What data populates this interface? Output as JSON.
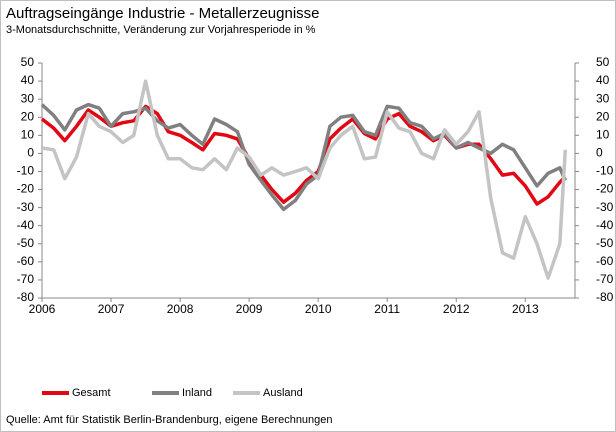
{
  "chart_data": {
    "type": "line",
    "title": "Auftragseingänge Industrie - Metallerzeugnisse",
    "subtitle": "3-Monatsdurchschnitte, Veränderung zur Vorjahresperiode in %",
    "source": "Quelle: Amt für Statistik Berlin-Brandenburg, eigene Berechnungen",
    "x": [
      2006.0,
      2006.17,
      2006.33,
      2006.5,
      2006.67,
      2006.83,
      2007.0,
      2007.17,
      2007.33,
      2007.5,
      2007.67,
      2007.83,
      2008.0,
      2008.17,
      2008.33,
      2008.5,
      2008.67,
      2008.83,
      2009.0,
      2009.17,
      2009.33,
      2009.5,
      2009.67,
      2009.83,
      2010.0,
      2010.17,
      2010.33,
      2010.5,
      2010.67,
      2010.83,
      2011.0,
      2011.17,
      2011.33,
      2011.5,
      2011.67,
      2011.83,
      2012.0,
      2012.17,
      2012.33,
      2012.5,
      2012.67,
      2012.83,
      2013.0,
      2013.17,
      2013.33,
      2013.5,
      2013.58
    ],
    "series": [
      {
        "name": "Gesamt",
        "color": "#e30613",
        "values": [
          19,
          14,
          7,
          15,
          24,
          20,
          15,
          17,
          18,
          26,
          22,
          12,
          10,
          6,
          2,
          11,
          10,
          8,
          -3,
          -12,
          -20,
          -27,
          -22,
          -15,
          -10,
          8,
          14,
          19,
          11,
          8,
          19,
          22,
          15,
          12,
          7,
          10,
          3,
          5,
          5,
          -3,
          -12,
          -11,
          -18,
          -28,
          -24,
          -16,
          -13
        ]
      },
      {
        "name": "Inland",
        "color": "#808080",
        "values": [
          27,
          21,
          13,
          24,
          27,
          25,
          15,
          22,
          23,
          25,
          18,
          14,
          16,
          10,
          5,
          19,
          16,
          12,
          -6,
          -15,
          -23,
          -31,
          -26,
          -17,
          -12,
          15,
          20,
          21,
          12,
          10,
          26,
          25,
          17,
          15,
          8,
          11,
          3,
          6,
          3,
          0,
          5,
          2,
          -8,
          -18,
          -11,
          -8,
          -15
        ]
      },
      {
        "name": "Ausland",
        "color": "#c4c4c4",
        "values": [
          3,
          2,
          -14,
          -2,
          22,
          15,
          12,
          6,
          10,
          40,
          10,
          -3,
          -3,
          -8,
          -9,
          -3,
          -9,
          3,
          -2,
          -12,
          -8,
          -12,
          -10,
          -8,
          -14,
          3,
          10,
          15,
          -3,
          -2,
          23,
          14,
          12,
          0,
          -3,
          13,
          5,
          12,
          23,
          -25,
          -55,
          -58,
          -35,
          -50,
          -69,
          -50,
          2
        ]
      }
    ],
    "xlim": [
      2006,
      2013.72
    ],
    "xticks": [
      2006,
      2007,
      2008,
      2009,
      2010,
      2011,
      2012,
      2013
    ],
    "ylim": [
      -80,
      50
    ],
    "yticks": [
      -80,
      -70,
      -60,
      -50,
      -40,
      -30,
      -20,
      -10,
      0,
      10,
      20,
      30,
      40,
      50
    ],
    "y2lim": [
      -80,
      50
    ],
    "y2ticks": [
      -80,
      -70,
      -60,
      -50,
      -40,
      -30,
      -20,
      -10,
      0,
      10,
      20,
      30,
      40,
      50
    ],
    "legend": "bottom"
  }
}
